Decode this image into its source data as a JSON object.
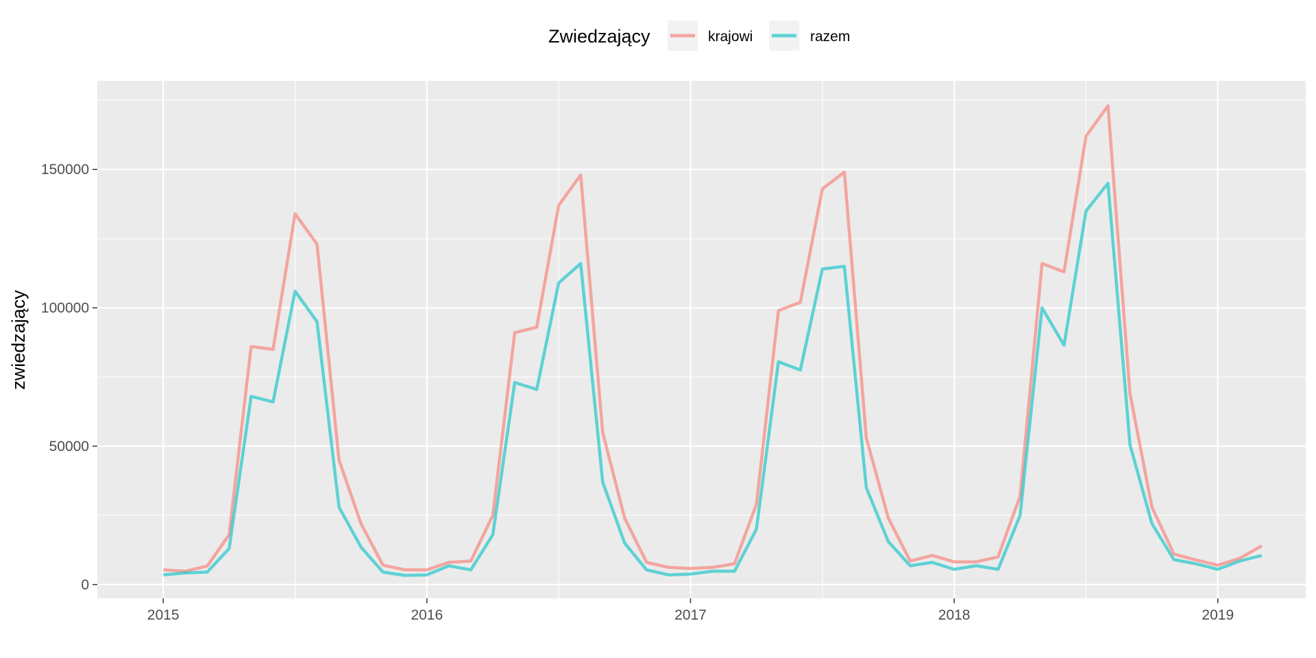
{
  "chart_data": {
    "type": "line",
    "title": "",
    "xlabel": "",
    "ylabel": "zwiedzający",
    "legend": {
      "title": "Zwiedzający",
      "position": "top",
      "entries": [
        {
          "label": "krajowi",
          "color": "#F8766D"
        },
        {
          "label": "razem",
          "color": "#00BFC4"
        }
      ]
    },
    "x_ticks": [
      "2015",
      "2016",
      "2017",
      "2018",
      "2019"
    ],
    "y_ticks": [
      "0",
      "50000",
      "100000",
      "150000"
    ],
    "xlim": [
      "2014-10",
      "2019-05"
    ],
    "ylim": [
      -5000,
      182000
    ],
    "grid": true,
    "line_opacity": 0.6,
    "x": [
      "2015-01",
      "2015-02",
      "2015-03",
      "2015-04",
      "2015-05",
      "2015-06",
      "2015-07",
      "2015-08",
      "2015-09",
      "2015-10",
      "2015-11",
      "2015-12",
      "2016-01",
      "2016-02",
      "2016-03",
      "2016-04",
      "2016-05",
      "2016-06",
      "2016-07",
      "2016-08",
      "2016-09",
      "2016-10",
      "2016-11",
      "2016-12",
      "2017-01",
      "2017-02",
      "2017-03",
      "2017-04",
      "2017-05",
      "2017-06",
      "2017-07",
      "2017-08",
      "2017-09",
      "2017-10",
      "2017-11",
      "2017-12",
      "2018-01",
      "2018-02",
      "2018-03",
      "2018-04",
      "2018-05",
      "2018-06",
      "2018-07",
      "2018-08",
      "2018-09",
      "2018-10",
      "2018-11",
      "2018-12",
      "2019-01",
      "2019-02",
      "2019-03"
    ],
    "series": [
      {
        "name": "krajowi",
        "color": "#F8766D",
        "values": [
          5300,
          4800,
          6700,
          18000,
          86000,
          85000,
          134000,
          123000,
          45000,
          22000,
          7000,
          5300,
          5300,
          8000,
          8500,
          25000,
          91000,
          93000,
          137000,
          148000,
          55000,
          24000,
          8000,
          6200,
          5800,
          6200,
          7500,
          29000,
          99000,
          102000,
          143000,
          149000,
          53000,
          24000,
          8500,
          10500,
          8200,
          8200,
          10000,
          32000,
          116000,
          113000,
          162000,
          173000,
          69000,
          28000,
          11000,
          8900,
          7000,
          9500,
          14000
        ]
      },
      {
        "name": "razem",
        "color": "#00BFC4",
        "values": [
          3500,
          4200,
          4500,
          13000,
          68000,
          66000,
          106000,
          95000,
          28000,
          13500,
          4500,
          3300,
          3500,
          6800,
          5300,
          18000,
          73000,
          70500,
          109000,
          116000,
          37000,
          15000,
          5300,
          3500,
          3800,
          4800,
          4800,
          20000,
          80500,
          77500,
          114000,
          115000,
          35000,
          15500,
          6800,
          8000,
          5500,
          6800,
          5500,
          25000,
          100000,
          86500,
          135000,
          145000,
          50500,
          22000,
          9000,
          7500,
          5500,
          8500,
          10500
        ]
      }
    ]
  }
}
